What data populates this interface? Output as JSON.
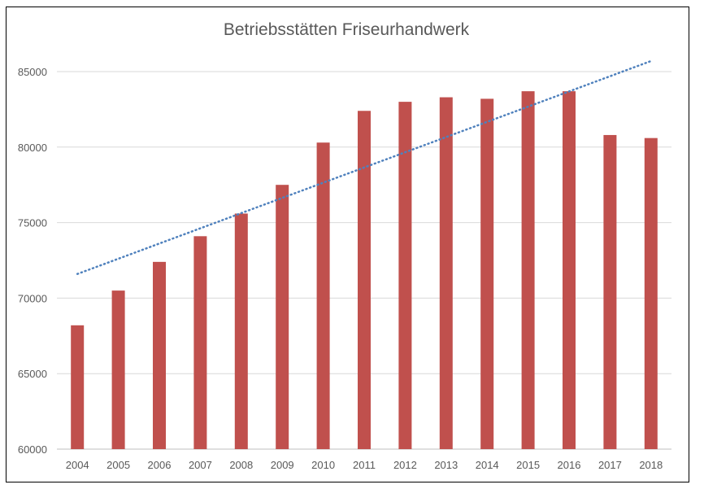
{
  "chart_data": {
    "type": "bar",
    "title": "Betriebsstätten Friseurhandwerk",
    "xlabel": "",
    "ylabel": "",
    "categories": [
      "2004",
      "2005",
      "2006",
      "2007",
      "2008",
      "2009",
      "2010",
      "2011",
      "2012",
      "2013",
      "2014",
      "2015",
      "2016",
      "2017",
      "2018"
    ],
    "values": [
      68200,
      70500,
      72400,
      74100,
      75600,
      77500,
      80300,
      82400,
      83000,
      83300,
      83200,
      83700,
      83700,
      80800,
      80600
    ],
    "ylim": [
      60000,
      85000
    ],
    "yticks": [
      "60000",
      "65000",
      "70000",
      "75000",
      "80000",
      "85000"
    ],
    "grid": true,
    "legend": "none",
    "bar_color": "#c0504d",
    "trendline": {
      "type": "linear",
      "style": "dotted",
      "color": "#4f81bd",
      "start": 71600,
      "end": 85700
    }
  }
}
